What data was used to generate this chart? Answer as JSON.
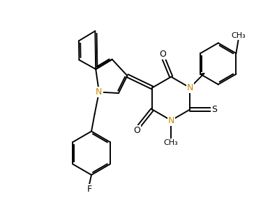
{
  "bg_color": "#ffffff",
  "bond_color": "#000000",
  "N_color": "#cc8800",
  "lw": 1.4,
  "figsize": [
    3.97,
    3.13
  ],
  "dpi": 100,
  "xlim": [
    0,
    10
  ],
  "ylim": [
    0,
    10
  ]
}
